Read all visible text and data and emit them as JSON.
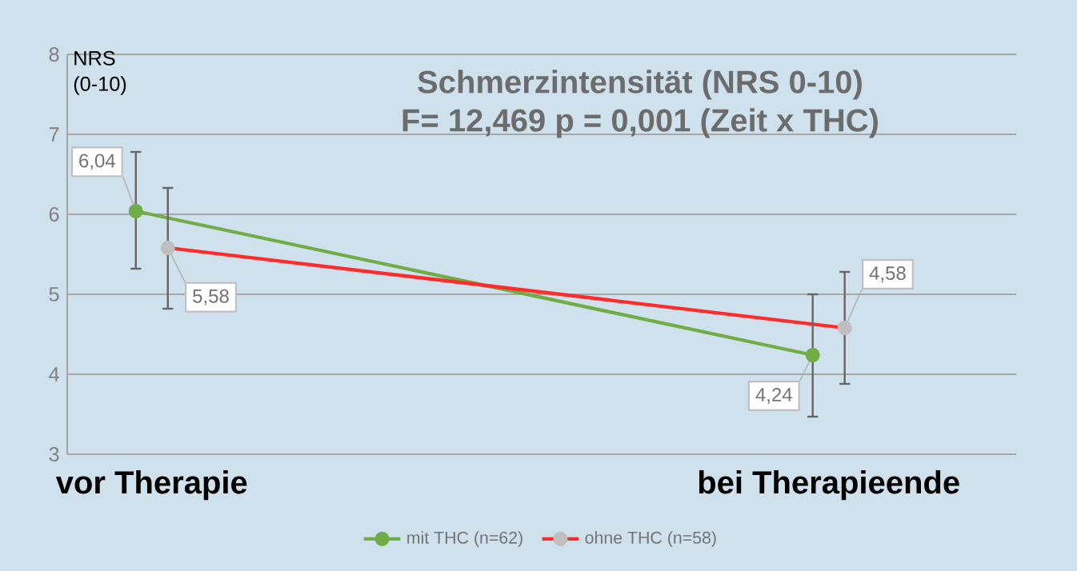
{
  "chart_data": {
    "type": "line",
    "title": "Schmerzintensität (NRS 0-10)",
    "subtitle": "F= 12,469 p = 0,001 (Zeit x THC)",
    "ylabel": "NRS (0-10)",
    "categories": [
      "vor Therapie",
      "bei Therapieende"
    ],
    "ylim": [
      3,
      8
    ],
    "yticks": [
      3,
      4,
      5,
      6,
      7,
      8
    ],
    "grid": "y",
    "legend": "bottom",
    "marker": "circle",
    "series": [
      {
        "name": "mit THC (n=62)",
        "color": "#70ad47",
        "colors": [
          "#70ad47",
          "#70ad47"
        ],
        "values": [
          6.04,
          4.24
        ],
        "value_labels": [
          "6,04",
          "4,24"
        ],
        "errors": [
          [
            5.32,
            6.78
          ],
          [
            3.47,
            5.0
          ]
        ]
      },
      {
        "name": "ohne THC (n=58)",
        "color": "#ff2a2a",
        "colors": [
          "#bfbfbf",
          "#bfbfbf"
        ],
        "values": [
          5.58,
          4.58
        ],
        "value_labels": [
          "5,58",
          "4,58"
        ],
        "errors": [
          [
            4.82,
            6.33
          ],
          [
            3.88,
            5.28
          ]
        ]
      }
    ]
  }
}
